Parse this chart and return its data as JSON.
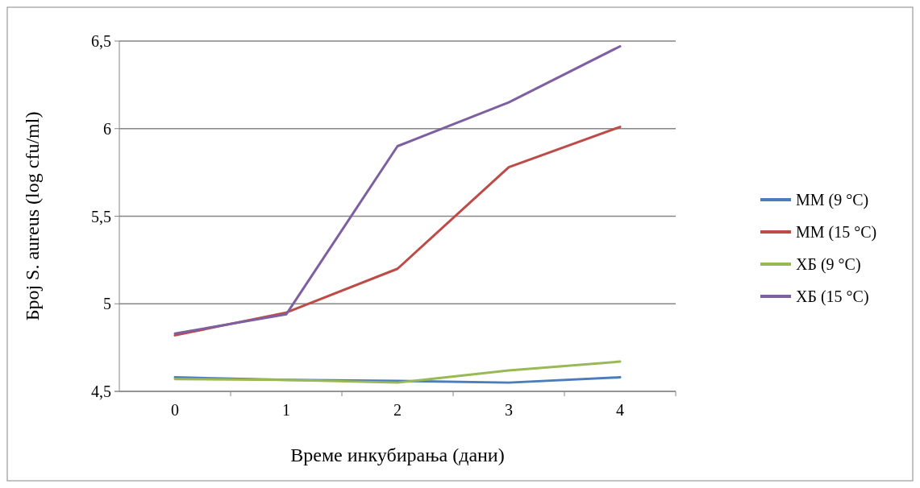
{
  "chart_data": {
    "type": "line",
    "xlabel": "Време инкубирања (дани)",
    "ylabel": "Број S. aureus (log cfu/ml)",
    "categories": [
      "0",
      "1",
      "2",
      "3",
      "4"
    ],
    "series": [
      {
        "name": "ММ (9 °C)",
        "color": "#4a7ebb",
        "values": [
          4.58,
          4.565,
          4.56,
          4.55,
          4.58
        ]
      },
      {
        "name": "ММ (15 °C)",
        "color": "#be4b48",
        "values": [
          4.82,
          4.95,
          5.2,
          5.78,
          6.01
        ]
      },
      {
        "name": "ХБ (9 °C)",
        "color": "#98b954",
        "values": [
          4.57,
          4.565,
          4.55,
          4.62,
          4.67
        ]
      },
      {
        "name": "ХБ (15 °C)",
        "color": "#7d60a0",
        "values": [
          4.83,
          4.94,
          5.9,
          6.15,
          6.47
        ]
      }
    ],
    "ylim": [
      4.5,
      6.5
    ],
    "yticks": [
      {
        "value": 4.5,
        "label": "4,5"
      },
      5,
      {
        "value": 5.5,
        "label": "5,5"
      },
      6,
      {
        "value": 6.5,
        "label": "6,5"
      }
    ],
    "grid": "y",
    "legend": "right",
    "marker": "none",
    "line_style": "solid"
  }
}
